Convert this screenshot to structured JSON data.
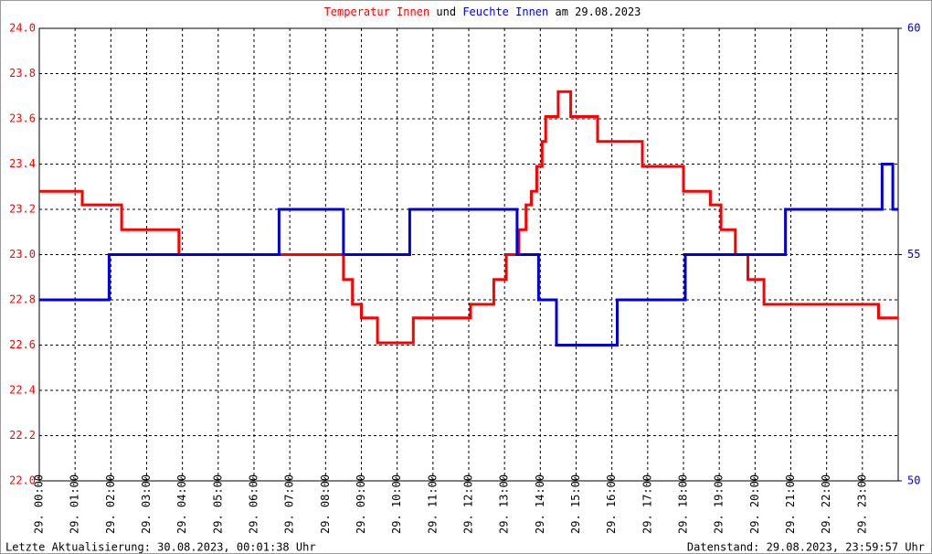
{
  "chart_data": {
    "type": "line",
    "title_parts": [
      "und",
      "am 29.08.2023"
    ],
    "footer_left": "Letzte Aktualisierung: 30.08.2023, 00:01:38 Uhr",
    "footer_right": "Datenstand: 29.08.2023, 23:59:57 Uhr",
    "xlim": [
      0,
      24
    ],
    "xticks": [
      {
        "value": 0,
        "label": "29. 00:00"
      },
      {
        "value": 1,
        "label": "29. 01:00"
      },
      {
        "value": 2,
        "label": "29. 02:00"
      },
      {
        "value": 3,
        "label": "29. 03:00"
      },
      {
        "value": 4,
        "label": "29. 04:00"
      },
      {
        "value": 5,
        "label": "29. 05:00"
      },
      {
        "value": 6,
        "label": "29. 06:00"
      },
      {
        "value": 7,
        "label": "29. 07:00"
      },
      {
        "value": 8,
        "label": "29. 08:00"
      },
      {
        "value": 9,
        "label": "29. 09:00"
      },
      {
        "value": 10,
        "label": "29. 10:00"
      },
      {
        "value": 11,
        "label": "29. 11:00"
      },
      {
        "value": 12,
        "label": "29. 12:00"
      },
      {
        "value": 13,
        "label": "29. 13:00"
      },
      {
        "value": 14,
        "label": "29. 14:00"
      },
      {
        "value": 15,
        "label": "29. 15:00"
      },
      {
        "value": 16,
        "label": "29. 16:00"
      },
      {
        "value": 17,
        "label": "29. 17:00"
      },
      {
        "value": 18,
        "label": "29. 18:00"
      },
      {
        "value": 19,
        "label": "29. 19:00"
      },
      {
        "value": 20,
        "label": "29. 20:00"
      },
      {
        "value": 21,
        "label": "29. 21:00"
      },
      {
        "value": 22,
        "label": "29. 22:00"
      },
      {
        "value": 23,
        "label": "29. 23:00"
      }
    ],
    "ylim": [
      22.0,
      24.0
    ],
    "yticks": [
      {
        "value": 22,
        "label": "22.0"
      },
      22.2,
      22.4,
      22.6,
      22.8,
      {
        "value": 23,
        "label": "23.0"
      },
      23.2,
      23.4,
      23.6,
      23.8,
      {
        "value": 24,
        "label": "24.0"
      }
    ],
    "y2lim": [
      50,
      60
    ],
    "y2ticks": [
      50,
      55,
      60
    ],
    "grid": true,
    "series": [
      {
        "name": "Temperatur Innen",
        "color": "#ff0000",
        "x": [
          0,
          1.2,
          1.2,
          2.3,
          2.3,
          3.9,
          3.9,
          8.5,
          8.5,
          8.75,
          8.75,
          9.0,
          9.0,
          9.45,
          9.45,
          10.45,
          10.45,
          12.05,
          12.05,
          12.7,
          12.7,
          13.05,
          13.05,
          13.4,
          13.4,
          13.6,
          13.6,
          13.75,
          13.75,
          13.9,
          13.9,
          14.05,
          14.05,
          14.15,
          14.15,
          14.5,
          14.5,
          14.85,
          14.85,
          15.6,
          15.6,
          16.85,
          16.85,
          18.0,
          18.0,
          18.75,
          18.75,
          19.05,
          19.05,
          19.45,
          19.45,
          19.8,
          19.8,
          20.25,
          20.25,
          23.45,
          23.45,
          24
        ],
        "values": [
          23.28,
          23.28,
          23.22,
          23.22,
          23.11,
          23.11,
          23.0,
          23.0,
          22.89,
          22.89,
          22.78,
          22.78,
          22.72,
          22.72,
          22.61,
          22.61,
          22.72,
          22.72,
          22.78,
          22.78,
          22.89,
          22.89,
          23.0,
          23.0,
          23.11,
          23.11,
          23.22,
          23.22,
          23.28,
          23.28,
          23.39,
          23.39,
          23.5,
          23.5,
          23.61,
          23.61,
          23.72,
          23.72,
          23.61,
          23.61,
          23.5,
          23.5,
          23.39,
          23.39,
          23.28,
          23.28,
          23.22,
          23.22,
          23.11,
          23.11,
          23.0,
          23.0,
          22.89,
          22.89,
          22.78,
          22.78,
          22.72,
          22.72
        ]
      },
      {
        "name": "Feuchte Innen",
        "color": "#0000dd",
        "axis": "y2",
        "x": [
          0,
          1.95,
          1.95,
          6.7,
          6.7,
          8.5,
          8.5,
          10.35,
          10.35,
          13.35,
          13.35,
          13.95,
          13.95,
          14.45,
          14.45,
          16.15,
          16.15,
          18.05,
          18.05,
          20.85,
          20.85,
          23.55,
          23.55,
          23.85,
          23.85,
          24
        ],
        "values": [
          54,
          54,
          55,
          55,
          56,
          56,
          55,
          55,
          56,
          56,
          55,
          55,
          54,
          54,
          53,
          53,
          54,
          54,
          55,
          55,
          56,
          56,
          57,
          57,
          56,
          56
        ]
      }
    ]
  }
}
